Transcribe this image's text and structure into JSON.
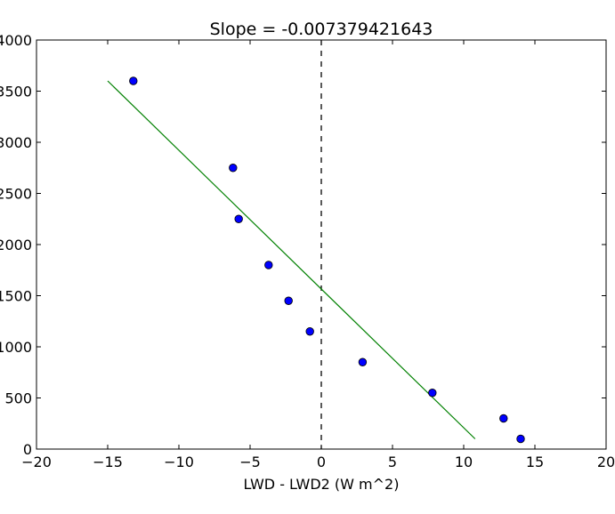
{
  "chart_data": {
    "type": "scatter",
    "title": "Slope = -0.007379421643",
    "xlabel": "LWD - LWD2 (W m^2)",
    "ylabel": "",
    "xlim": [
      -20,
      20
    ],
    "ylim": [
      0,
      4000
    ],
    "xticks": [
      -20,
      -15,
      -10,
      -5,
      0,
      5,
      10,
      15,
      20
    ],
    "yticks": [
      0,
      500,
      1000,
      1500,
      2000,
      2500,
      3000,
      3500,
      4000
    ],
    "xtick_labels": [
      "−20",
      "−15",
      "−10",
      "−5",
      "0",
      "5",
      "10",
      "15",
      "20"
    ],
    "ytick_labels": [
      "0",
      "500",
      "1000",
      "1500",
      "2000",
      "2500",
      "3000",
      "3500",
      "4000"
    ],
    "grid": false,
    "points": [
      {
        "x": -13.2,
        "y": 3600
      },
      {
        "x": -6.2,
        "y": 2750
      },
      {
        "x": -5.8,
        "y": 2250
      },
      {
        "x": -3.7,
        "y": 1800
      },
      {
        "x": -2.3,
        "y": 1450
      },
      {
        "x": -0.8,
        "y": 1150
      },
      {
        "x": 2.9,
        "y": 850
      },
      {
        "x": 7.8,
        "y": 550
      },
      {
        "x": 12.8,
        "y": 300
      },
      {
        "x": 14.0,
        "y": 100
      }
    ],
    "fit_line": {
      "x": [
        -15,
        10.8
      ],
      "y": [
        3600,
        100
      ]
    },
    "reference_line": {
      "x": 0
    },
    "colors": {
      "points": "#0000ff",
      "fit_line": "#008000",
      "reference_line": "#000000"
    }
  }
}
